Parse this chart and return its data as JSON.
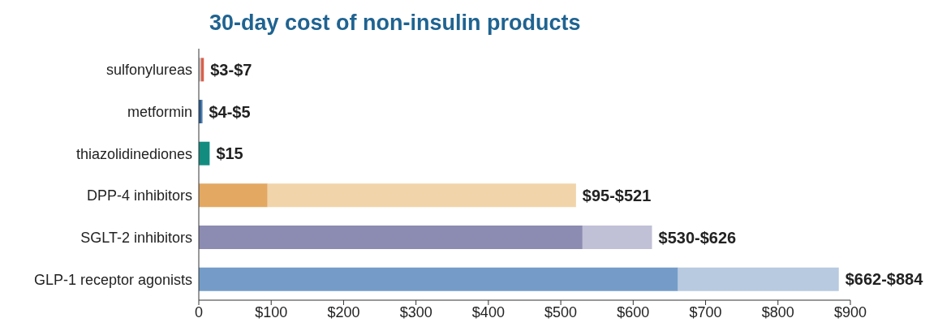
{
  "chart_data": {
    "type": "bar",
    "orientation": "horizontal",
    "stacked": true,
    "title": "30-day cost of non-insulin products",
    "categories": [
      "sulfonylureas",
      "metformin",
      "thiazolidinediones",
      "DPP-4 inhibitors",
      "SGLT-2 inhibitors",
      "GLP-1 receptor agonists"
    ],
    "series": [
      {
        "colors": [
          "#c9c9c9",
          "#2b5f93",
          "#138c80",
          "#e3a862",
          "#8c8bb2",
          "#759cc8"
        ],
        "values": [
          3,
          4,
          15,
          95,
          530,
          662
        ],
        "value_labels": [
          null,
          null,
          "$15",
          null,
          null,
          null
        ]
      },
      {
        "colors": [
          "#d9604c",
          "#2b5f93",
          "#138c80",
          "#f1d4a9",
          "#c0c1d6",
          "#b8cae0"
        ],
        "values": [
          4,
          1,
          null,
          426,
          96,
          222
        ],
        "value_labels": [
          "$3-$7",
          "$4-$5",
          null,
          "$95-$521",
          "$530-$626",
          "$662-$884"
        ]
      }
    ],
    "xlim": [
      0,
      900
    ],
    "xticks": [
      {
        "value": 0,
        "label": "0"
      },
      {
        "value": 100,
        "label": "$100"
      },
      {
        "value": 200,
        "label": "$200"
      },
      {
        "value": 300,
        "label": "$300"
      },
      {
        "value": 400,
        "label": "$400"
      },
      {
        "value": 500,
        "label": "$500"
      },
      {
        "value": 600,
        "label": "$600"
      },
      {
        "value": 700,
        "label": "$700"
      },
      {
        "value": 800,
        "label": "$800"
      },
      {
        "value": 900,
        "label": "$900"
      }
    ],
    "grid": false,
    "legend": false
  }
}
